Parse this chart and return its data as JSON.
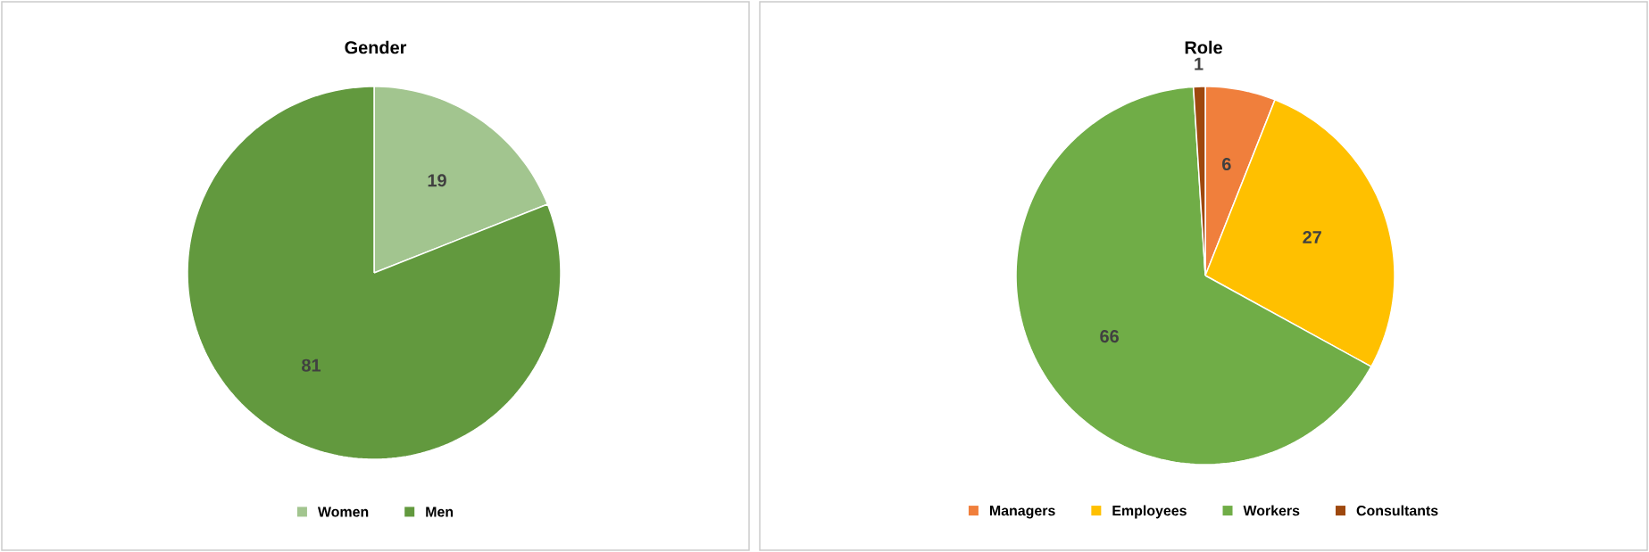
{
  "chart_data": [
    {
      "type": "pie",
      "title": "Gender",
      "categories": [
        "Women",
        "Men"
      ],
      "values": [
        19,
        81
      ],
      "colors": [
        "#a2c58f",
        "#62993e"
      ],
      "data_labels": true,
      "legend": "bottom"
    },
    {
      "type": "pie",
      "title": "Role",
      "categories": [
        "Managers",
        "Employees",
        "Workers",
        "Consultants"
      ],
      "values": [
        6,
        27,
        66,
        1
      ],
      "colors": [
        "#f07f3c",
        "#ffc000",
        "#70ad47",
        "#9e480e"
      ],
      "data_labels": true,
      "legend": "bottom"
    }
  ]
}
